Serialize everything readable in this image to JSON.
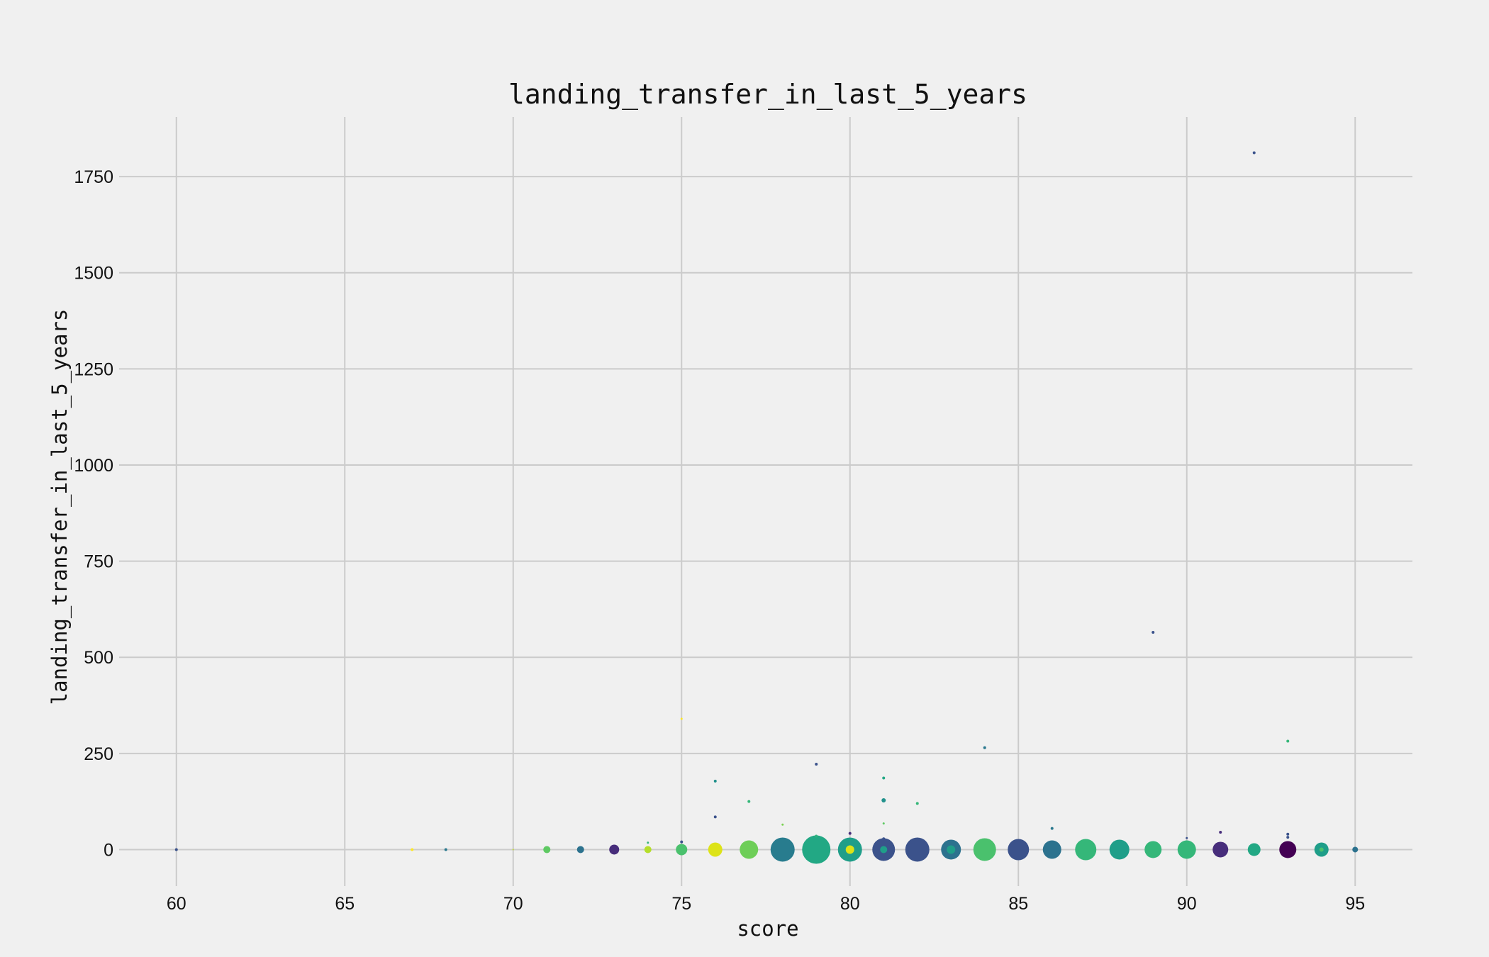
{
  "chart_data": {
    "type": "scatter",
    "title": "landing_transfer_in_last_5_years",
    "xlabel": "score",
    "ylabel": "landing_transfer_in_last_5_years",
    "xlim": [
      58.3,
      96.7
    ],
    "ylim": [
      -95,
      1905
    ],
    "xticks": [
      60,
      65,
      70,
      75,
      80,
      85,
      90,
      95
    ],
    "yticks": [
      0,
      250,
      500,
      750,
      1000,
      1250,
      1500,
      1750
    ],
    "grid": true,
    "legend": "none",
    "colormap": "viridis",
    "points": [
      {
        "x": 60,
        "y": 0,
        "size": 2,
        "color": "#3b528b"
      },
      {
        "x": 67,
        "y": 0,
        "size": 2,
        "color": "#fde725"
      },
      {
        "x": 68,
        "y": 0,
        "size": 2,
        "color": "#2a788e"
      },
      {
        "x": 70,
        "y": 0,
        "size": 1,
        "color": "#c2df23"
      },
      {
        "x": 71,
        "y": 0,
        "size": 5,
        "color": "#5ec962"
      },
      {
        "x": 72,
        "y": 0,
        "size": 5,
        "color": "#2c728e"
      },
      {
        "x": 73,
        "y": 0,
        "size": 7,
        "color": "#472d7b"
      },
      {
        "x": 74,
        "y": 0,
        "size": 5,
        "color": "#b5de2b"
      },
      {
        "x": 74,
        "y": 18,
        "size": 1.5,
        "color": "#35b779"
      },
      {
        "x": 75,
        "y": 0,
        "size": 8,
        "color": "#4ac16d"
      },
      {
        "x": 75,
        "y": 10,
        "size": 1.5,
        "color": "#4ac16d"
      },
      {
        "x": 75,
        "y": 20,
        "size": 2,
        "color": "#3b528b"
      },
      {
        "x": 75,
        "y": 340,
        "size": 1.5,
        "color": "#fde725"
      },
      {
        "x": 76,
        "y": 0,
        "size": 10,
        "color": "#dde318"
      },
      {
        "x": 76,
        "y": 85,
        "size": 2,
        "color": "#3b528b"
      },
      {
        "x": 76,
        "y": 178,
        "size": 2,
        "color": "#21918c"
      },
      {
        "x": 77,
        "y": 0,
        "size": 13,
        "color": "#6ece58"
      },
      {
        "x": 77,
        "y": 125,
        "size": 2,
        "color": "#35b779"
      },
      {
        "x": 78,
        "y": 0,
        "size": 17,
        "color": "#287c8e"
      },
      {
        "x": 78,
        "y": 65,
        "size": 1.5,
        "color": "#7ad151"
      },
      {
        "x": 79,
        "y": 0,
        "size": 20,
        "color": "#22a884"
      },
      {
        "x": 79,
        "y": 35,
        "size": 2,
        "color": "#2db27d"
      },
      {
        "x": 79,
        "y": 222,
        "size": 2,
        "color": "#3b528b"
      },
      {
        "x": 80,
        "y": 0,
        "size": 17,
        "color": "#1f9e89"
      },
      {
        "x": 80,
        "y": 0,
        "size": 6,
        "color": "#dde318"
      },
      {
        "x": 80,
        "y": 42,
        "size": 2,
        "color": "#472d7b"
      },
      {
        "x": 81,
        "y": 0,
        "size": 16,
        "color": "#3b528b"
      },
      {
        "x": 81,
        "y": 0,
        "size": 5,
        "color": "#1f9e89"
      },
      {
        "x": 81,
        "y": 28,
        "size": 2,
        "color": "#3b528b"
      },
      {
        "x": 81,
        "y": 68,
        "size": 1.5,
        "color": "#5ec962"
      },
      {
        "x": 81,
        "y": 128,
        "size": 3,
        "color": "#21918c"
      },
      {
        "x": 81,
        "y": 186,
        "size": 2,
        "color": "#22a884"
      },
      {
        "x": 82,
        "y": 0,
        "size": 17,
        "color": "#3b528b"
      },
      {
        "x": 82,
        "y": 120,
        "size": 2,
        "color": "#35b779"
      },
      {
        "x": 83,
        "y": 0,
        "size": 14,
        "color": "#2c728e"
      },
      {
        "x": 83,
        "y": 0,
        "size": 6,
        "color": "#1f9e89"
      },
      {
        "x": 84,
        "y": 0,
        "size": 16,
        "color": "#4ac16d"
      },
      {
        "x": 84,
        "y": 265,
        "size": 2,
        "color": "#2a788e"
      },
      {
        "x": 85,
        "y": 0,
        "size": 15,
        "color": "#3b528b"
      },
      {
        "x": 86,
        "y": 0,
        "size": 13,
        "color": "#2c728e"
      },
      {
        "x": 86,
        "y": 55,
        "size": 2,
        "color": "#2a788e"
      },
      {
        "x": 87,
        "y": 0,
        "size": 15,
        "color": "#35b779"
      },
      {
        "x": 88,
        "y": 0,
        "size": 14,
        "color": "#1f9e89"
      },
      {
        "x": 89,
        "y": 0,
        "size": 12,
        "color": "#35b779"
      },
      {
        "x": 89,
        "y": 565,
        "size": 2,
        "color": "#3b528b"
      },
      {
        "x": 90,
        "y": 0,
        "size": 13,
        "color": "#35b779"
      },
      {
        "x": 90,
        "y": 30,
        "size": 1.5,
        "color": "#3b528b"
      },
      {
        "x": 91,
        "y": 0,
        "size": 11,
        "color": "#472d7b"
      },
      {
        "x": 91,
        "y": 45,
        "size": 2,
        "color": "#472d7b"
      },
      {
        "x": 92,
        "y": 0,
        "size": 9,
        "color": "#22a884"
      },
      {
        "x": 92,
        "y": 1812,
        "size": 2,
        "color": "#3b528b"
      },
      {
        "x": 93,
        "y": 0,
        "size": 12,
        "color": "#440154"
      },
      {
        "x": 93,
        "y": 32,
        "size": 2,
        "color": "#3b528b"
      },
      {
        "x": 93,
        "y": 40,
        "size": 2,
        "color": "#3b528b"
      },
      {
        "x": 93,
        "y": 282,
        "size": 2,
        "color": "#35b779"
      },
      {
        "x": 94,
        "y": 0,
        "size": 10,
        "color": "#1f9e89"
      },
      {
        "x": 94,
        "y": 0,
        "size": 3,
        "color": "#4ac16d"
      },
      {
        "x": 95,
        "y": 0,
        "size": 4,
        "color": "#2c728e"
      }
    ]
  }
}
